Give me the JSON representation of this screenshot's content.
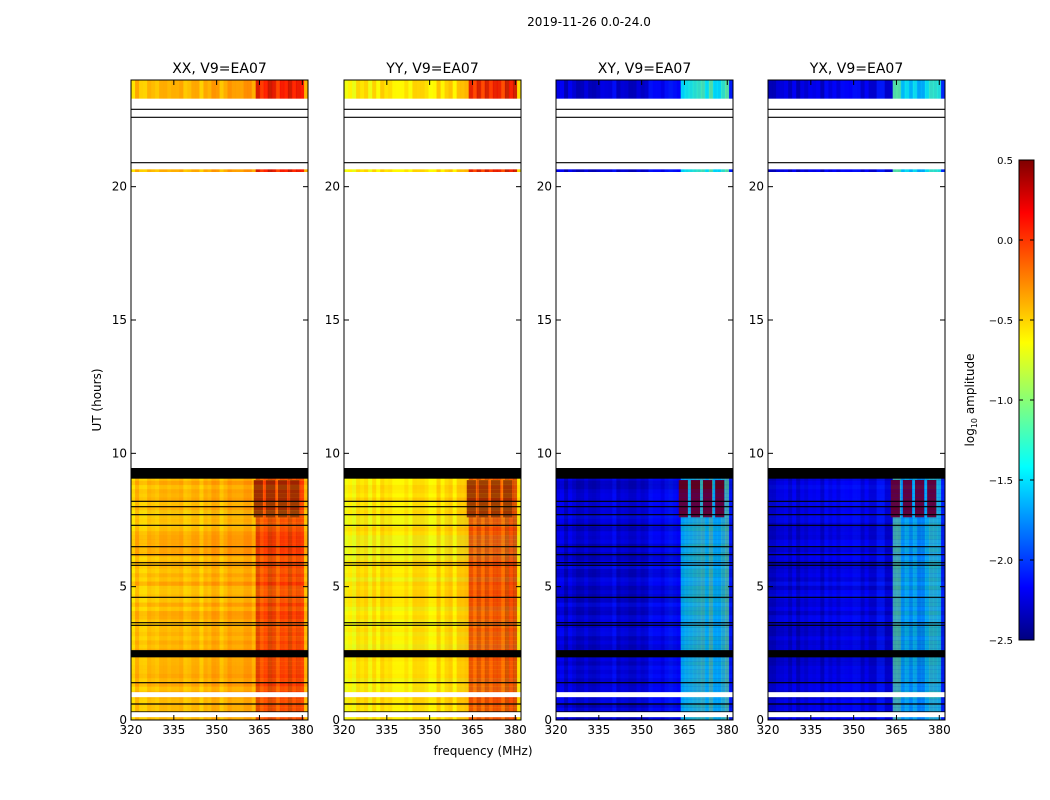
{
  "figure": {
    "suptitle": "2019-11-26 0.0-24.0",
    "xlabel": "frequency (MHz)",
    "ylabel": "UT (hours)"
  },
  "colorbar": {
    "label_prefix": "log",
    "label_sub": "10",
    "label_suffix": " amplitude",
    "range": [
      -2.5,
      0.5
    ],
    "ticks": [
      "0.5",
      "0.0",
      "−0.5",
      "−1.0",
      "−1.5",
      "−2.0",
      "−2.5"
    ],
    "tick_values": [
      0.5,
      0.0,
      -0.5,
      -1.0,
      -1.5,
      -2.0,
      -2.5
    ],
    "colormap": "jet",
    "cmap_stops": [
      "#00007f",
      "#0000ff",
      "#00ffff",
      "#ffff00",
      "#ff0000",
      "#7f0000"
    ]
  },
  "chart_data": {
    "type": "heatmap",
    "x_range": [
      320,
      382
    ],
    "y_range": [
      0,
      24
    ],
    "x_ticks": [
      320,
      335,
      350,
      365,
      380
    ],
    "y_ticks": [
      0,
      5,
      10,
      15,
      20
    ],
    "panels": [
      {
        "title": "XX, V9=EA07",
        "base_level": -0.45,
        "rfi_level": 0.35,
        "gap_hours": [
          [
            20.65,
            23.3
          ],
          [
            9.45,
            20.55
          ]
        ],
        "flag_lines_hours": [
          0.3,
          0.6,
          1.0,
          1.4,
          2.4,
          2.5,
          2.6,
          3.55,
          3.65,
          4.6,
          5.8,
          5.9,
          6.2,
          6.5,
          7.3,
          7.7,
          8.0,
          8.2,
          9.1,
          9.2,
          9.3,
          22.6,
          22.9,
          20.9
        ]
      },
      {
        "title": "YY, V9=EA07",
        "base_level": -0.6,
        "rfi_level": 0.35,
        "gap_hours": [
          [
            20.65,
            23.3
          ],
          [
            9.45,
            20.55
          ]
        ],
        "flag_lines_hours": [
          0.3,
          0.6,
          1.0,
          1.4,
          2.4,
          2.5,
          2.6,
          3.55,
          3.65,
          4.6,
          5.8,
          5.9,
          6.2,
          6.5,
          7.3,
          7.7,
          8.0,
          8.2,
          9.1,
          9.2,
          9.3,
          22.6,
          22.9,
          20.9
        ]
      },
      {
        "title": "XY, V9=EA07",
        "base_level": -2.3,
        "rfi_level": -1.1,
        "gap_hours": [
          [
            20.65,
            23.3
          ],
          [
            9.45,
            20.55
          ]
        ],
        "flag_lines_hours": [
          0.3,
          0.6,
          1.0,
          1.4,
          2.4,
          2.5,
          2.6,
          3.55,
          3.65,
          4.6,
          5.8,
          5.9,
          6.2,
          6.5,
          7.3,
          7.7,
          8.0,
          8.2,
          9.1,
          9.2,
          9.3,
          22.6,
          22.9,
          20.9
        ]
      },
      {
        "title": "YX, V9=EA07",
        "base_level": -2.3,
        "rfi_level": -1.1,
        "gap_hours": [
          [
            20.65,
            23.3
          ],
          [
            9.45,
            20.55
          ]
        ],
        "flag_lines_hours": [
          0.3,
          0.6,
          1.0,
          1.4,
          2.4,
          2.5,
          2.6,
          3.55,
          3.65,
          4.6,
          5.8,
          5.9,
          6.2,
          6.5,
          7.3,
          7.7,
          8.0,
          8.2,
          9.1,
          9.2,
          9.3,
          22.6,
          22.9,
          20.9
        ]
      }
    ],
    "rfi_band_mhz": [
      363,
      380
    ]
  }
}
